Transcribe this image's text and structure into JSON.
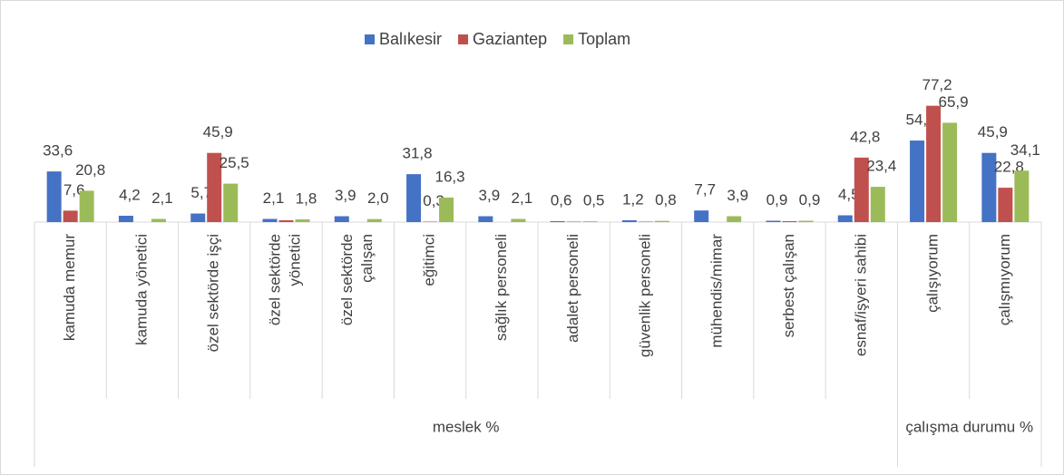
{
  "chart_data": {
    "type": "bar",
    "category_groups": [
      {
        "label": "meslek %",
        "categories": [
          "kamuda memur",
          "kamuda yönetici",
          "özel sektörde işçi",
          "özel sektörde yönetici",
          "özel sektörde çalışan",
          "eğitimci",
          "sağlık personeli",
          "adalet personeli",
          "güvenlik personeli",
          "mühendis/mimar",
          "serbest çalışan",
          "esnaf/işyeri sahibi"
        ]
      },
      {
        "label": "çalışma durumu %",
        "categories": [
          "çalışıyorum",
          "çalışmıyorum"
        ]
      }
    ],
    "series": [
      {
        "name": "Balıkesir",
        "color": "#4472c4",
        "values": [
          33.6,
          4.2,
          5.7,
          2.1,
          3.9,
          31.8,
          3.9,
          0.6,
          1.2,
          7.7,
          0.9,
          4.5,
          54.1,
          45.9
        ],
        "value_labels": [
          "33,6",
          "4,2",
          "5,7",
          "2,1",
          "3,9",
          "31,8",
          "3,9",
          "0,6",
          "1,2",
          "7,7",
          "0,9",
          "4,5",
          "54,1",
          "45,9"
        ]
      },
      {
        "name": "Gaziantep",
        "color": "#c0504d",
        "values": [
          7.6,
          null,
          45.9,
          1.2,
          null,
          0.3,
          null,
          0.3,
          0.3,
          null,
          0.6,
          42.8,
          77.2,
          22.8
        ],
        "value_labels": [
          "7,6",
          null,
          "45,9",
          null,
          null,
          "0,3",
          null,
          null,
          null,
          null,
          null,
          "42,8",
          "77,2",
          "22,8"
        ]
      },
      {
        "name": "Toplam",
        "color": "#9bbb59",
        "values": [
          20.8,
          2.1,
          25.5,
          1.8,
          2.0,
          16.3,
          2.1,
          0.5,
          0.8,
          3.9,
          0.9,
          23.4,
          65.9,
          34.1
        ],
        "value_labels": [
          "20,8",
          "2,1",
          "25,5",
          "1,8",
          "2,0",
          "16,3",
          "2,1",
          "0,5",
          "0,8",
          "3,9",
          "0,9",
          "23,4",
          "65,9",
          "34,1"
        ]
      }
    ],
    "ylim": [
      0,
      80
    ],
    "legend": "top"
  }
}
